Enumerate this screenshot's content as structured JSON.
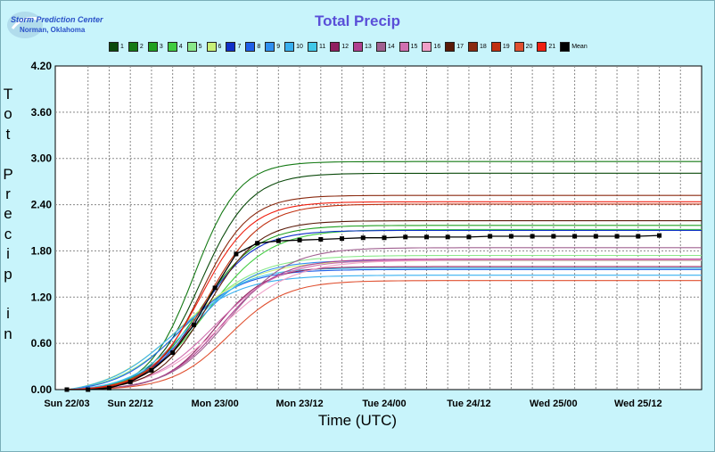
{
  "logo": {
    "line1": "Storm Prediction Center",
    "line2": "Norman, Oklahoma"
  },
  "chart_data": {
    "type": "line",
    "title": "Total Precip",
    "xlabel": "Time (UTC)",
    "ylabel": "Tot Precip in",
    "ylim": [
      0,
      4.2
    ],
    "yticks": [
      "0.00",
      "0.60",
      "1.20",
      "1.80",
      "2.40",
      "3.00",
      "3.60",
      "4.20"
    ],
    "xticks": [
      "Sun 22/03",
      "Sun 22/12",
      "Mon 23/00",
      "Mon 23/12",
      "Tue 24/00",
      "Tue 24/12",
      "Wed 25/00",
      "Wed 25/12"
    ],
    "x_hours": [
      3,
      6,
      9,
      12,
      15,
      18,
      21,
      24,
      27,
      30,
      33,
      36,
      39,
      42,
      45,
      48,
      51,
      54,
      57,
      60,
      63,
      66,
      69,
      72,
      75,
      78,
      81,
      84,
      87
    ],
    "grid": true,
    "legend_position": "top",
    "series": [
      {
        "name": "1",
        "color": "#0b4a0b",
        "final": 2.82
      },
      {
        "name": "2",
        "color": "#157a15",
        "final": 2.97
      },
      {
        "name": "3",
        "color": "#20a020",
        "final": 2.15
      },
      {
        "name": "4",
        "color": "#40cc40",
        "final": 2.1
      },
      {
        "name": "5",
        "color": "#8ae88a",
        "final": 1.8
      },
      {
        "name": "6",
        "color": "#c8f078",
        "final": 1.75
      },
      {
        "name": "7",
        "color": "#1030c8",
        "final": 2.08
      },
      {
        "name": "8",
        "color": "#2060e8",
        "final": 1.6
      },
      {
        "name": "9",
        "color": "#3090f0",
        "final": 1.7
      },
      {
        "name": "10",
        "color": "#38b0f0",
        "final": 1.55
      },
      {
        "name": "11",
        "color": "#40c8e8",
        "final": 1.6
      },
      {
        "name": "12",
        "color": "#902060",
        "final": 1.6
      },
      {
        "name": "13",
        "color": "#b04090",
        "final": 1.7
      },
      {
        "name": "14",
        "color": "#a06090",
        "final": 1.85
      },
      {
        "name": "15",
        "color": "#d070b0",
        "final": 1.7
      },
      {
        "name": "16",
        "color": "#f0a0c8",
        "final": 1.7
      },
      {
        "name": "17",
        "color": "#5a1a08",
        "final": 2.2
      },
      {
        "name": "18",
        "color": "#8a2a10",
        "final": 2.53
      },
      {
        "name": "19",
        "color": "#c03010",
        "final": 2.42
      },
      {
        "name": "20",
        "color": "#e05030",
        "final": 1.42
      },
      {
        "name": "21",
        "color": "#f02010",
        "final": 2.45
      },
      {
        "name": "Mean",
        "color": "#000000",
        "marker": "square",
        "values": [
          0.0,
          0.0,
          0.02,
          0.1,
          0.25,
          0.48,
          0.84,
          1.32,
          1.76,
          1.9,
          1.93,
          1.94,
          1.95,
          1.96,
          1.97,
          1.97,
          1.98,
          1.98,
          1.98,
          1.98,
          1.99,
          1.99,
          1.99,
          1.99,
          1.99,
          1.99,
          1.99,
          1.99,
          2.0
        ]
      }
    ]
  }
}
